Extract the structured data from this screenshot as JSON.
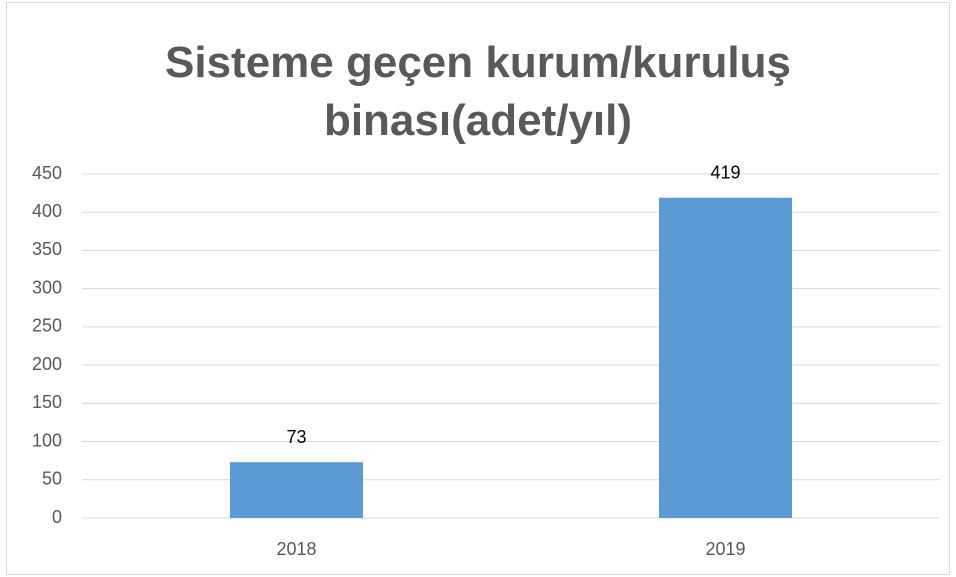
{
  "chart_data": {
    "type": "bar",
    "title": "Sisteme geçen kurum/kuruluş binası(adet/yıl)",
    "categories": [
      "2018",
      "2019"
    ],
    "values": [
      73,
      419
    ],
    "color": "#5b9bd5",
    "ylim": [
      0,
      450
    ],
    "yticks": [
      0,
      50,
      100,
      150,
      200,
      250,
      300,
      350,
      400,
      450
    ],
    "grid": true
  }
}
